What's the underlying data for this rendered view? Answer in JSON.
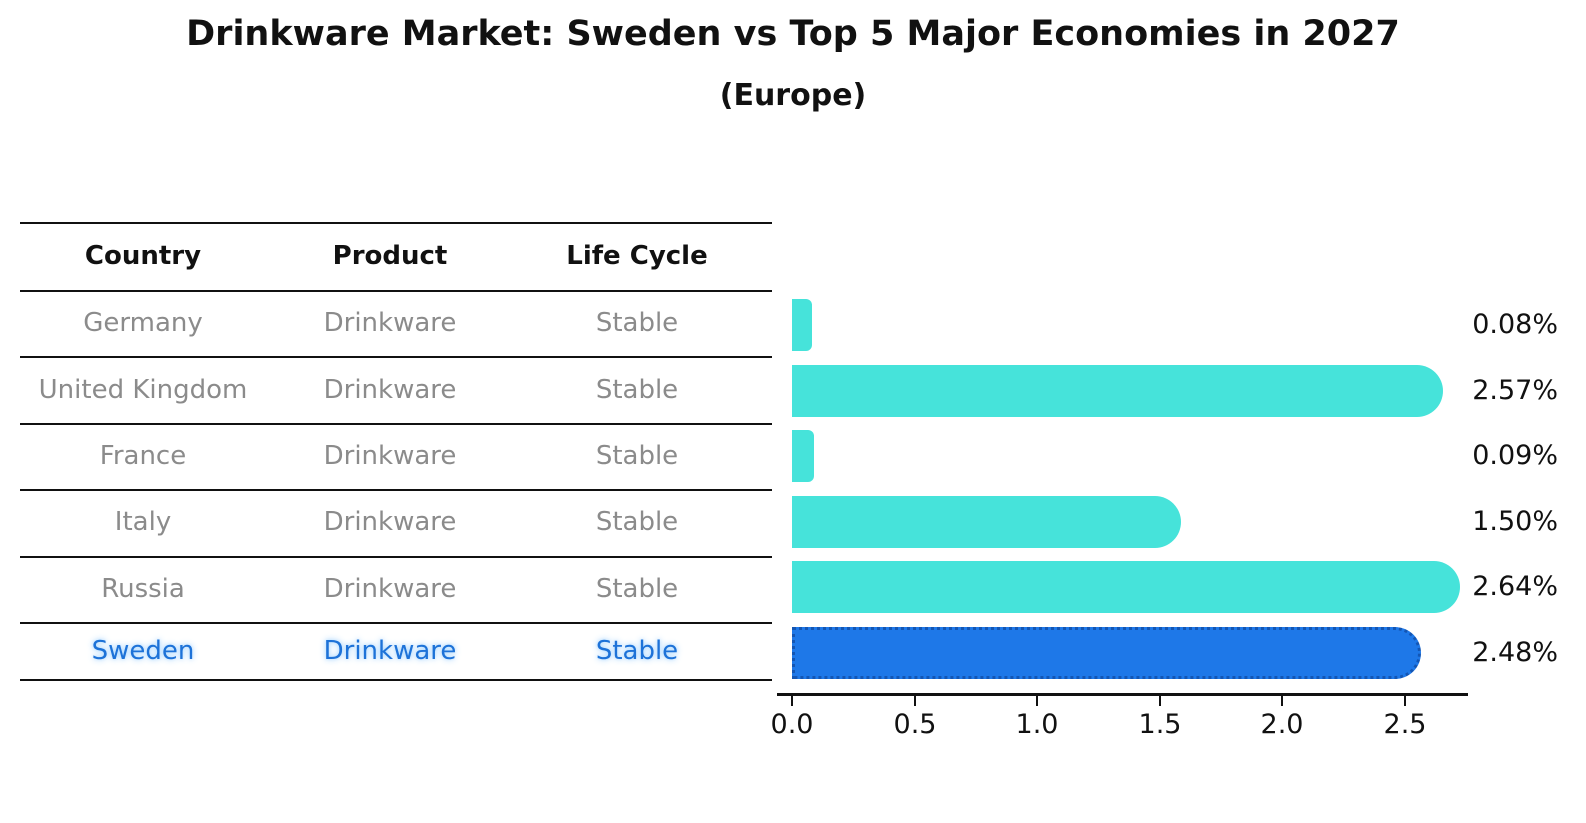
{
  "title": "Drinkware Market: Sweden vs Top 5 Major Economies in 2027",
  "subtitle": "(Europe)",
  "table": {
    "columns": [
      "Country",
      "Product",
      "Life Cycle"
    ],
    "rows": [
      {
        "country": "Germany",
        "product": "Drinkware",
        "life_cycle": "Stable",
        "highlight": false
      },
      {
        "country": "United Kingdom",
        "product": "Drinkware",
        "life_cycle": "Stable",
        "highlight": false
      },
      {
        "country": "France",
        "product": "Drinkware",
        "life_cycle": "Stable",
        "highlight": false
      },
      {
        "country": "Italy",
        "product": "Drinkware",
        "life_cycle": "Stable",
        "highlight": false
      },
      {
        "country": "Russia",
        "product": "Drinkware",
        "life_cycle": "Stable",
        "highlight": false
      },
      {
        "country": "Sweden",
        "product": "Drinkware",
        "life_cycle": "Stable",
        "highlight": true
      }
    ]
  },
  "chart_data": {
    "type": "bar",
    "orientation": "horizontal",
    "title": "Drinkware Market: Sweden vs Top 5 Major Economies in 2027",
    "subtitle": "(Europe)",
    "categories": [
      "Germany",
      "United Kingdom",
      "France",
      "Italy",
      "Russia",
      "Sweden"
    ],
    "values": [
      0.08,
      2.57,
      0.09,
      1.5,
      2.64,
      2.48
    ],
    "value_labels": [
      "0.08%",
      "2.57%",
      "0.09%",
      "1.50%",
      "2.64%",
      "2.48%"
    ],
    "highlighted_category": "Sweden",
    "x_tick_labels": [
      "0.0",
      "0.5",
      "1.0",
      "1.5",
      "2.0",
      "2.5"
    ],
    "x_tick_values": [
      0,
      0.5,
      1,
      1.5,
      2,
      2.5
    ],
    "xlim": [
      0,
      2.75
    ],
    "grid": false,
    "legend": false,
    "colors": {
      "bar": "#46e3da",
      "highlight_bar": "#1e78e8",
      "highlight_bar_border": "#1356b4",
      "header_text": "#111111",
      "row_text": "#8b8b8b",
      "highlight_text": "#1d72d8"
    }
  }
}
